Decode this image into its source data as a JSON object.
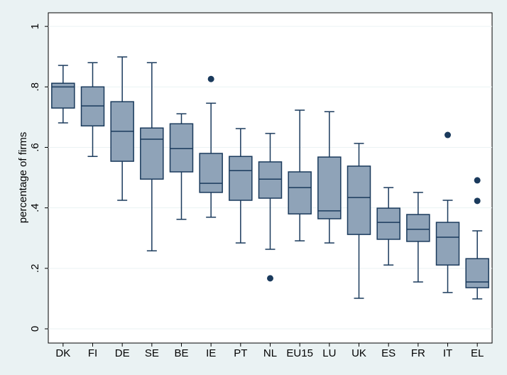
{
  "chart_data": {
    "type": "box",
    "y_label": "percentage of firms",
    "categories": [
      "DK",
      "FI",
      "DE",
      "SE",
      "BE",
      "IE",
      "PT",
      "NL",
      "EU15",
      "LU",
      "UK",
      "ES",
      "FR",
      "IT",
      "EL"
    ],
    "whisker_high": [
      0.871,
      0.88,
      0.899,
      0.88,
      0.711,
      0.746,
      0.662,
      0.646,
      0.723,
      0.718,
      0.613,
      0.467,
      0.451,
      0.425,
      0.324
    ],
    "q3": [
      0.812,
      0.8,
      0.751,
      0.664,
      0.678,
      0.58,
      0.57,
      0.552,
      0.519,
      0.568,
      0.538,
      0.399,
      0.378,
      0.352,
      0.232
    ],
    "median": [
      0.8,
      0.737,
      0.653,
      0.627,
      0.596,
      0.481,
      0.523,
      0.495,
      0.467,
      0.39,
      0.434,
      0.352,
      0.329,
      0.303,
      0.155
    ],
    "q1": [
      0.73,
      0.671,
      0.554,
      0.495,
      0.519,
      0.451,
      0.425,
      0.432,
      0.38,
      0.364,
      0.312,
      0.296,
      0.289,
      0.211,
      0.136
    ],
    "whisker_low": [
      0.681,
      0.57,
      0.425,
      0.258,
      0.362,
      0.369,
      0.284,
      0.263,
      0.291,
      0.284,
      0.101,
      0.211,
      0.155,
      0.12,
      0.099
    ],
    "outliers": [
      [],
      [],
      [],
      [],
      [],
      [
        0.826
      ],
      [],
      [
        0.167
      ],
      [],
      [],
      [],
      [],
      [],
      [
        0.641
      ],
      [
        0.491,
        0.423
      ]
    ],
    "color": "#8fa3b8",
    "line_color": "#1a3a5c",
    "ylim": [
      -0.047,
      1.045
    ],
    "yticks": [
      0,
      {
        "value": 0.2,
        "label": ".2"
      },
      {
        "value": 0.4,
        "label": ".4"
      },
      {
        "value": 0.6,
        "label": ".6"
      },
      {
        "value": 0.8,
        "label": ".8"
      },
      1
    ],
    "grid": true
  }
}
